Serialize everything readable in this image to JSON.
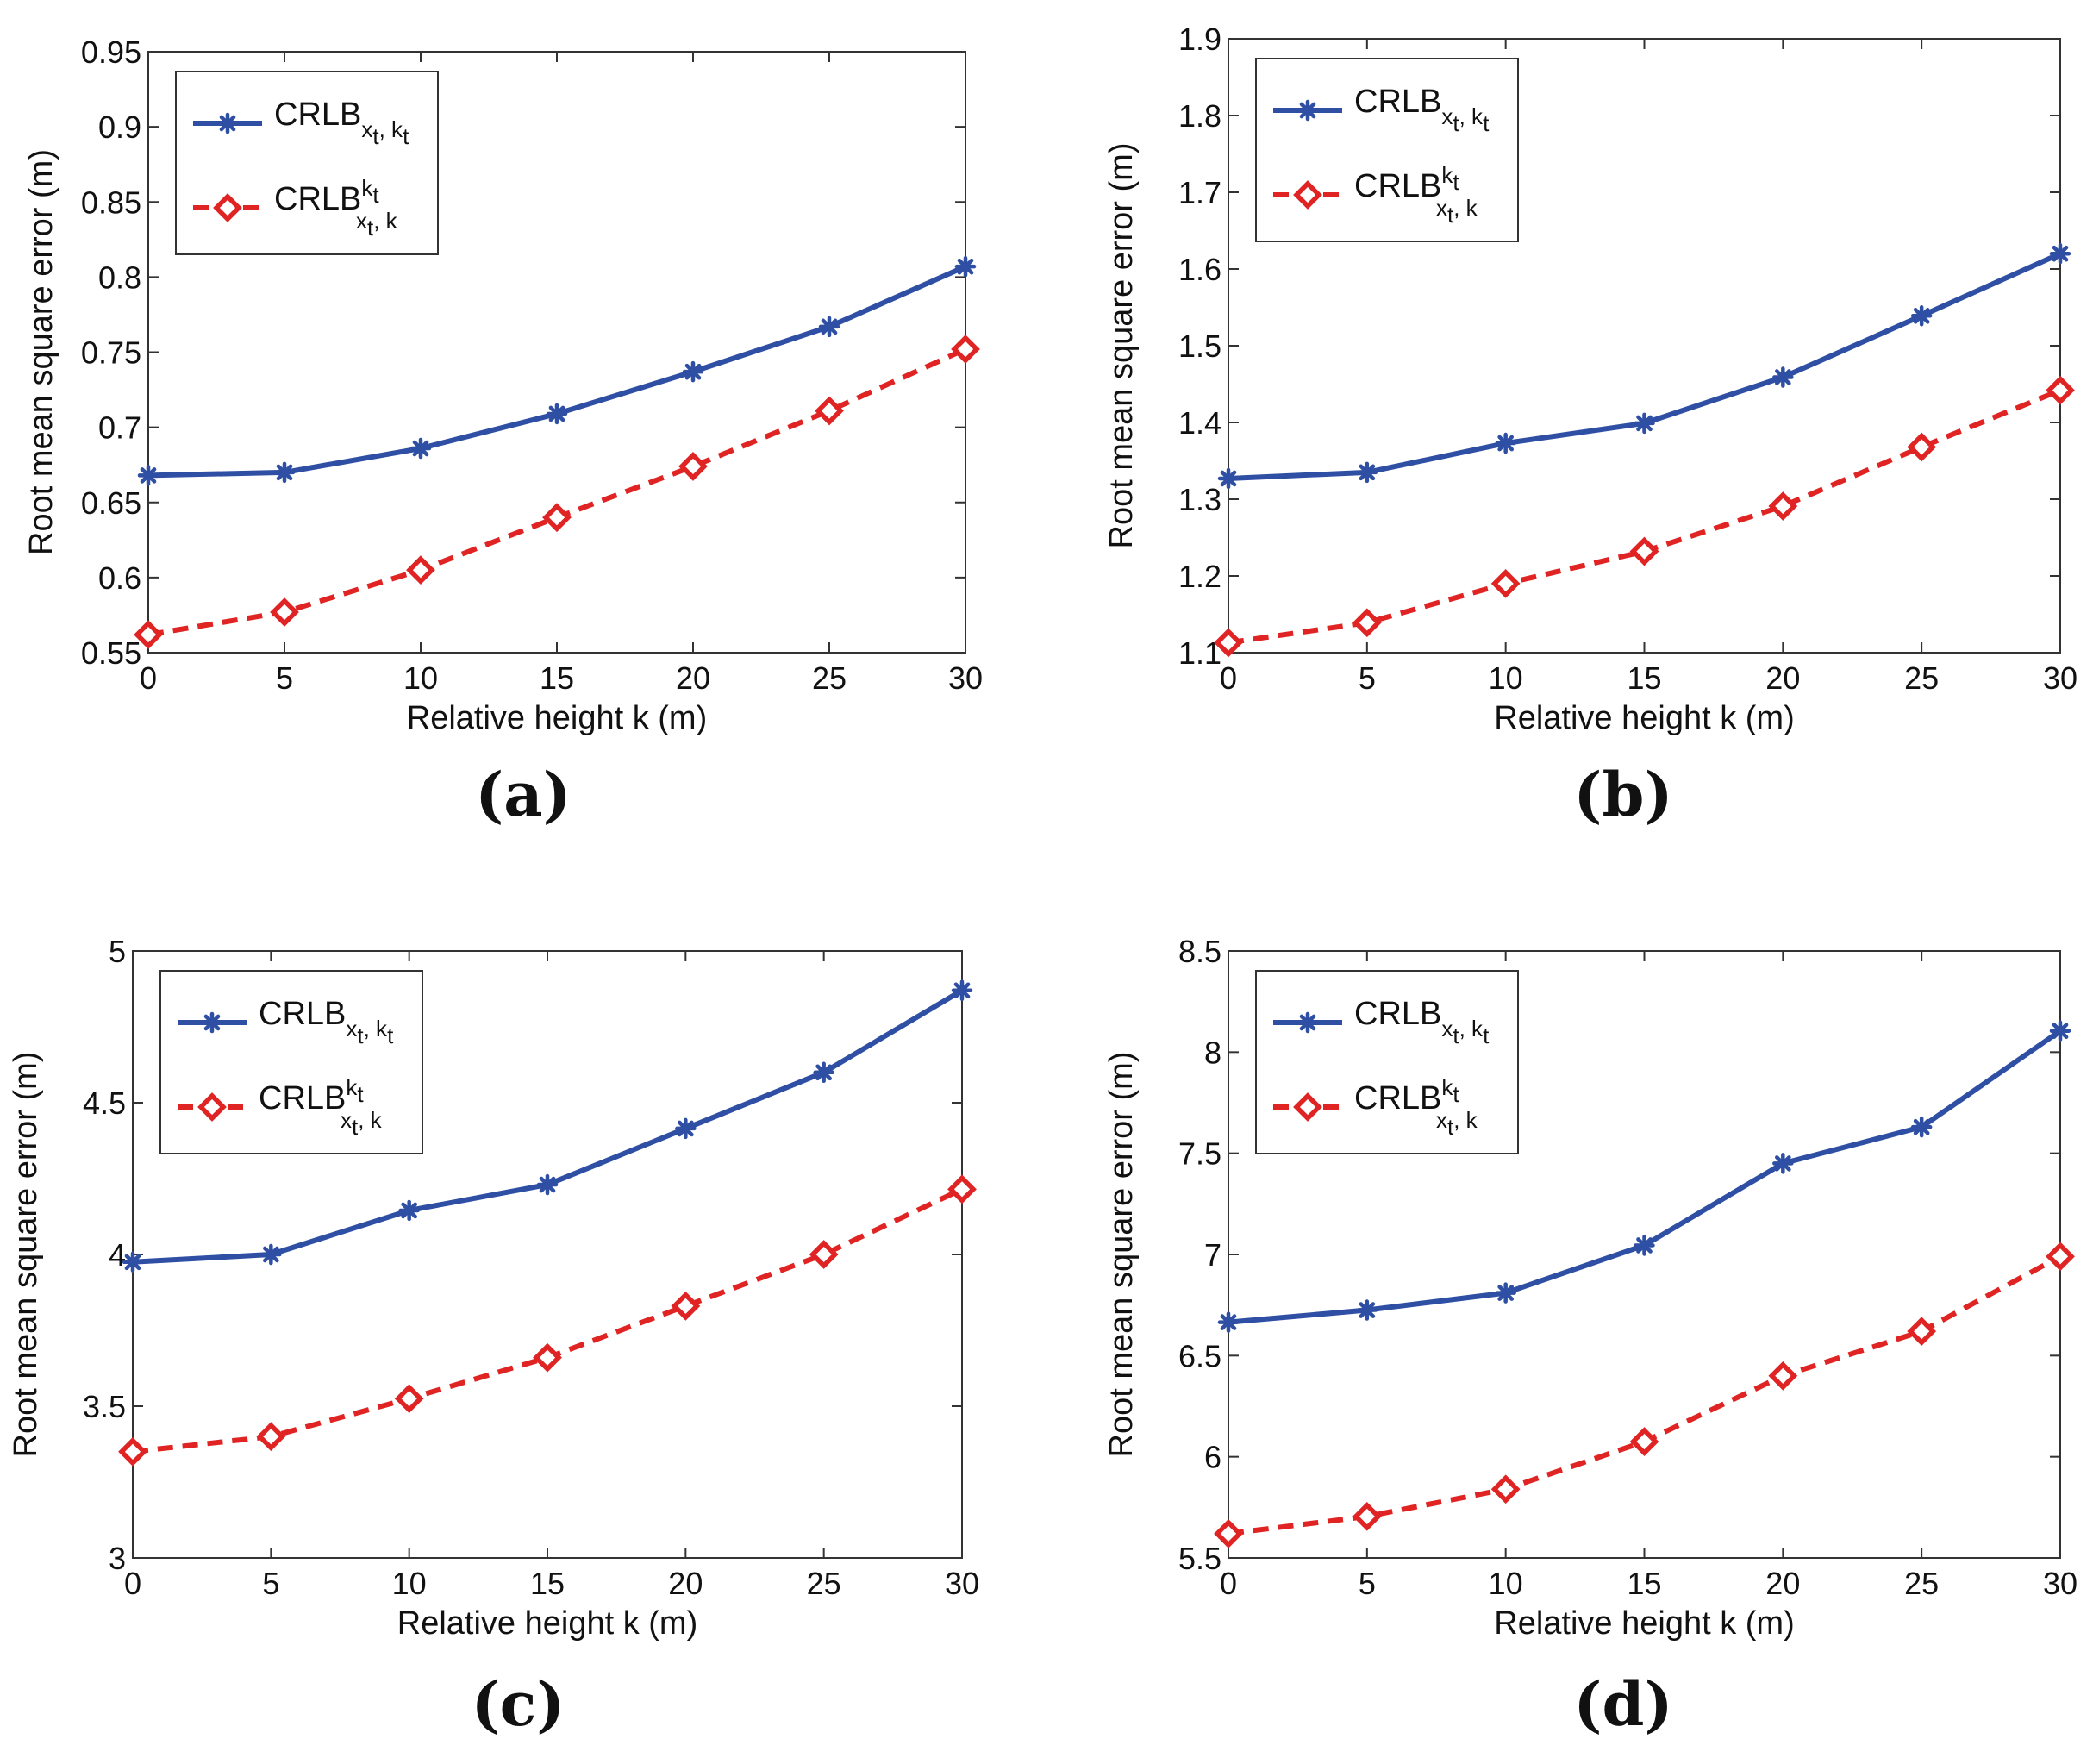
{
  "chart_data": [
    {
      "panel": "(a)",
      "type": "line",
      "xlabel": "Relative height k (m)",
      "ylabel": "Root mean square error (m)",
      "xlim": [
        0,
        30
      ],
      "ylim": [
        0.55,
        0.95
      ],
      "xticks": [
        0,
        5,
        10,
        15,
        20,
        25,
        30
      ],
      "yticks": [
        0.55,
        0.6,
        0.65,
        0.7,
        0.75,
        0.8,
        0.85,
        0.9,
        0.95
      ],
      "ytick_labels": [
        "0.55",
        "0.6",
        "0.65",
        "0.7",
        "0.75",
        "0.8",
        "0.85",
        "0.9",
        "0.95"
      ],
      "x": [
        0,
        5,
        10,
        15,
        20,
        25,
        30
      ],
      "series": [
        {
          "name": "CRLB",
          "legend_sub": "x",
          "legend_sub2": "t",
          "legend_sub3": ", k",
          "legend_sub4": "t",
          "color": "#2e4fa3",
          "dash": "solid",
          "marker": "asterisk",
          "values": [
            0.668,
            0.67,
            0.686,
            0.709,
            0.737,
            0.767,
            0.807
          ]
        },
        {
          "name": "CRLB",
          "legend_sup": "k",
          "legend_sup2": "t",
          "legend_sub": "x",
          "legend_sub2": "t",
          "legend_sub3": ", k",
          "color": "#e02424",
          "dash": "dashed",
          "marker": "diamond",
          "values": [
            0.562,
            0.577,
            0.605,
            0.64,
            0.674,
            0.711,
            0.752
          ]
        }
      ]
    },
    {
      "panel": "(b)",
      "type": "line",
      "xlabel": "Relative height k (m)",
      "ylabel": "Root mean square error (m)",
      "xlim": [
        0,
        30
      ],
      "ylim": [
        1.1,
        1.9
      ],
      "xticks": [
        0,
        5,
        10,
        15,
        20,
        25,
        30
      ],
      "yticks": [
        1.1,
        1.2,
        1.3,
        1.4,
        1.5,
        1.6,
        1.7,
        1.8,
        1.9
      ],
      "ytick_labels": [
        "1.1",
        "1.2",
        "1.3",
        "1.4",
        "1.5",
        "1.6",
        "1.7",
        "1.8",
        "1.9"
      ],
      "x": [
        0,
        5,
        10,
        15,
        20,
        25,
        30
      ],
      "series": [
        {
          "name": "CRLB",
          "legend_sub": "x",
          "legend_sub2": "t",
          "legend_sub3": ", k",
          "legend_sub4": "t",
          "color": "#2e4fa3",
          "dash": "solid",
          "marker": "asterisk",
          "values": [
            1.327,
            1.335,
            1.373,
            1.399,
            1.459,
            1.539,
            1.62
          ]
        },
        {
          "name": "CRLB",
          "legend_sup": "k",
          "legend_sup2": "t",
          "legend_sub": "x",
          "legend_sub2": "t",
          "legend_sub3": ", k",
          "color": "#e02424",
          "dash": "dashed",
          "marker": "diamond",
          "values": [
            1.113,
            1.139,
            1.19,
            1.232,
            1.291,
            1.368,
            1.442
          ]
        }
      ]
    },
    {
      "panel": "(c)",
      "type": "line",
      "xlabel": "Relative height k (m)",
      "ylabel": "Root mean square error (m)",
      "xlim": [
        0,
        30
      ],
      "ylim": [
        3,
        5
      ],
      "xticks": [
        0,
        5,
        10,
        15,
        20,
        25,
        30
      ],
      "yticks": [
        3,
        3.5,
        4,
        4.5,
        5
      ],
      "ytick_labels": [
        "3",
        "3.5",
        "4",
        "4.5",
        "5"
      ],
      "x": [
        0,
        5,
        10,
        15,
        20,
        25,
        30
      ],
      "series": [
        {
          "name": "CRLB",
          "legend_sub": "x",
          "legend_sub2": "t",
          "legend_sub3": ", k",
          "legend_sub4": "t",
          "color": "#2e4fa3",
          "dash": "solid",
          "marker": "asterisk",
          "values": [
            3.975,
            4.0,
            4.145,
            4.23,
            4.415,
            4.6,
            4.87
          ]
        },
        {
          "name": "CRLB",
          "legend_sup": "k",
          "legend_sup2": "t",
          "legend_sub": "x",
          "legend_sub2": "t",
          "legend_sub3": ", k",
          "color": "#e02424",
          "dash": "dashed",
          "marker": "diamond",
          "values": [
            3.35,
            3.4,
            3.525,
            3.66,
            3.83,
            4.0,
            4.215
          ]
        }
      ]
    },
    {
      "panel": "(d)",
      "type": "line",
      "xlabel": "Relative height k (m)",
      "ylabel": "Root mean square error (m)",
      "xlim": [
        0,
        30
      ],
      "ylim": [
        5.5,
        8.5
      ],
      "xticks": [
        0,
        5,
        10,
        15,
        20,
        25,
        30
      ],
      "yticks": [
        5.5,
        6,
        6.5,
        7,
        7.5,
        8,
        8.5
      ],
      "ytick_labels": [
        "5.5",
        "6",
        "6.5",
        "7",
        "7.5",
        "8",
        "8.5"
      ],
      "x": [
        0,
        5,
        10,
        15,
        20,
        25,
        30
      ],
      "series": [
        {
          "name": "CRLB",
          "legend_sub": "x",
          "legend_sub2": "t",
          "legend_sub3": ", k",
          "legend_sub4": "t",
          "color": "#2e4fa3",
          "dash": "solid",
          "marker": "asterisk",
          "values": [
            6.665,
            6.725,
            6.81,
            7.045,
            7.45,
            7.63,
            8.105
          ]
        },
        {
          "name": "CRLB",
          "legend_sup": "k",
          "legend_sup2": "t",
          "legend_sub": "x",
          "legend_sub2": "t",
          "legend_sub3": ", k",
          "color": "#e02424",
          "dash": "dashed",
          "marker": "diamond",
          "values": [
            5.62,
            5.705,
            5.84,
            6.075,
            6.4,
            6.62,
            6.99
          ]
        }
      ]
    }
  ]
}
